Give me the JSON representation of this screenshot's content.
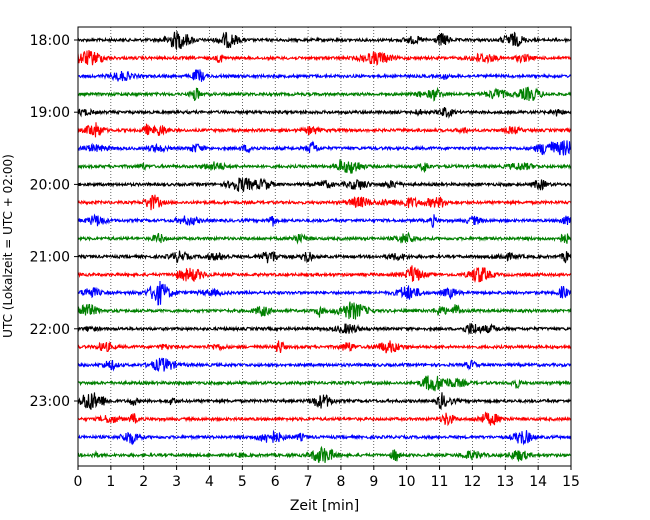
{
  "chart_data": {
    "type": "line",
    "title": "",
    "xlabel": "Zeit  [min]",
    "ylabel": "UTC (Lokalzeit = UTC + 02:00)",
    "xlim": [
      0,
      15
    ],
    "x_ticks": [
      0,
      1,
      2,
      3,
      4,
      5,
      6,
      7,
      8,
      9,
      10,
      11,
      12,
      13,
      14,
      15
    ],
    "y_tick_labels": [
      "18:00",
      "19:00",
      "20:00",
      "21:00",
      "22:00",
      "23:00"
    ],
    "grid": "vertical-dotted",
    "trace_start": "18:00",
    "trace_interval_minutes": 15,
    "trace_count": 24,
    "trace_colors": [
      "#000000",
      "#ff0000",
      "#0000ff",
      "#008000"
    ]
  }
}
